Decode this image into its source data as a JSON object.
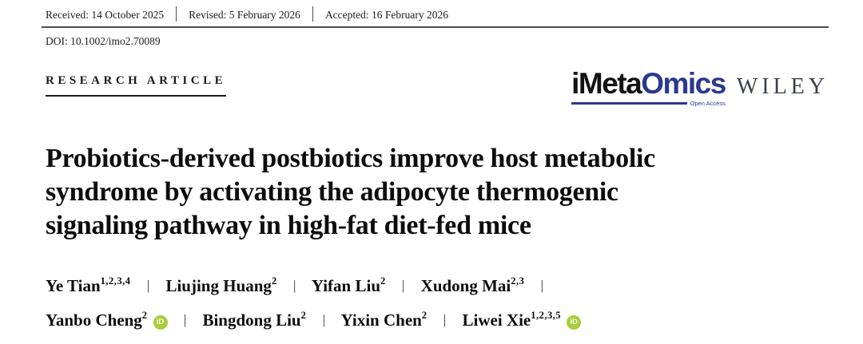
{
  "meta": {
    "received": "Received: 14 October 2025",
    "revised": "Revised: 5 February 2026",
    "accepted": "Accepted: 16 February 2026",
    "doi": "DOI: 10.1002/imo2.70089"
  },
  "article_type": "RESEARCH ARTICLE",
  "journal": {
    "logo_black_part": "iMeta",
    "logo_blue_part": "Omics",
    "open_access_label": "Open Access",
    "publisher": "WILEY",
    "brand_blue": "#2b3990",
    "orcid_green": "#a6ce39"
  },
  "title": {
    "line1": "Probiotics-derived postbiotics improve host metabolic",
    "line2": "syndrome by activating the adipocyte thermogenic",
    "line3": "signaling pathway in high-fat diet-fed mice"
  },
  "authors": {
    "separator": "|",
    "orcid_label": "iD",
    "line1": [
      {
        "name": "Ye Tian",
        "sup": "1,2,3,4"
      },
      {
        "name": "Liujing Huang",
        "sup": "2"
      },
      {
        "name": "Yifan Liu",
        "sup": "2"
      },
      {
        "name": "Xudong Mai",
        "sup": "2,3"
      }
    ],
    "line2": [
      {
        "name": "Yanbo Cheng",
        "sup": "2",
        "orcid": true
      },
      {
        "name": "Bingdong Liu",
        "sup": "2"
      },
      {
        "name": "Yixin Chen",
        "sup": "2"
      },
      {
        "name": "Liwei Xie",
        "sup": "1,2,3,5",
        "orcid": true
      }
    ]
  }
}
